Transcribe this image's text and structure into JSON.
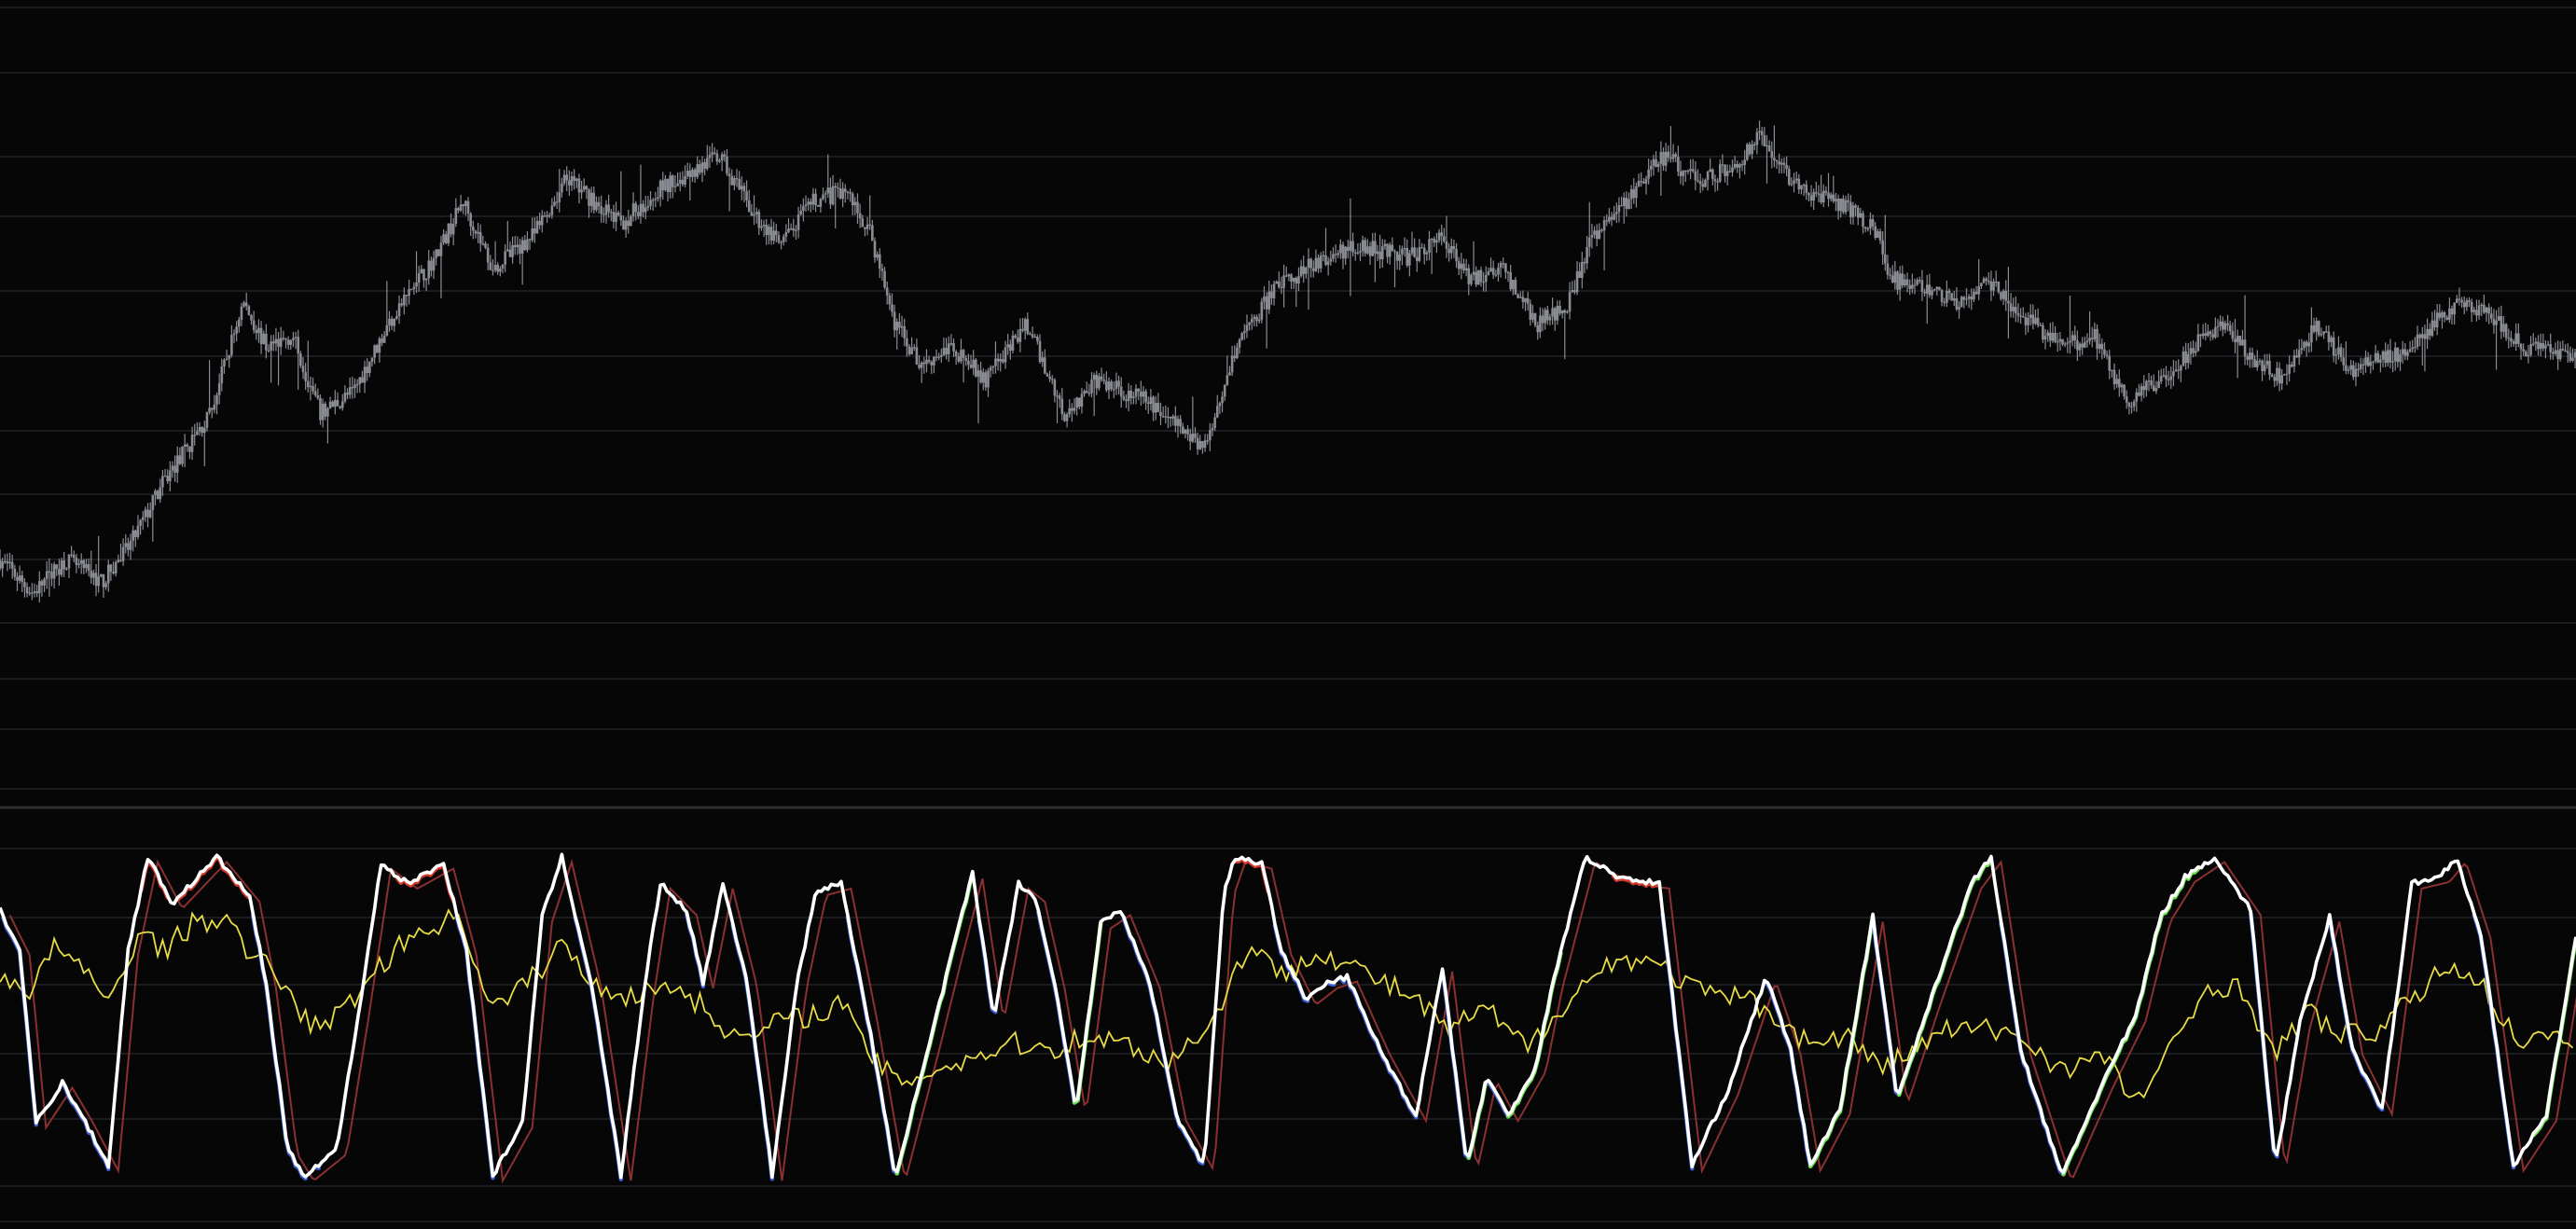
{
  "colors": {
    "background": "#060607",
    "grid": "#1b1c1f",
    "separator": "#2c2d31",
    "candle": "#8a8c93",
    "main_line": "#ffffff",
    "rising": "#6be04f",
    "falling": "#3f5fd0",
    "overbought": "#d33a2c",
    "momentum": "#e8dc46",
    "signal": "#8a3030"
  },
  "chart_data": [
    {
      "type": "candlestick",
      "title": "",
      "xlabel": "",
      "ylabel": "",
      "ylim": [
        0,
        100
      ],
      "grid": true,
      "x_range": [
        0,
        1568
      ],
      "trend": [
        [
          0,
          20
        ],
        [
          20,
          14
        ],
        [
          40,
          20
        ],
        [
          62,
          16
        ],
        [
          78,
          22
        ],
        [
          100,
          34
        ],
        [
          128,
          46
        ],
        [
          148,
          66
        ],
        [
          162,
          58
        ],
        [
          178,
          60
        ],
        [
          195,
          46
        ],
        [
          215,
          50
        ],
        [
          240,
          64
        ],
        [
          265,
          74
        ],
        [
          282,
          84
        ],
        [
          300,
          72
        ],
        [
          325,
          78
        ],
        [
          345,
          88
        ],
        [
          378,
          80
        ],
        [
          400,
          86
        ],
        [
          438,
          92
        ],
        [
          458,
          82
        ],
        [
          475,
          76
        ],
        [
          495,
          84
        ],
        [
          515,
          86
        ],
        [
          530,
          78
        ],
        [
          545,
          62
        ],
        [
          560,
          55
        ],
        [
          580,
          58
        ],
        [
          600,
          52
        ],
        [
          625,
          62
        ],
        [
          648,
          46
        ],
        [
          668,
          52
        ],
        [
          700,
          48
        ],
        [
          733,
          40
        ],
        [
          752,
          58
        ],
        [
          775,
          68
        ],
        [
          795,
          72
        ],
        [
          825,
          76
        ],
        [
          858,
          74
        ],
        [
          878,
          78
        ],
        [
          895,
          70
        ],
        [
          915,
          72
        ],
        [
          935,
          62
        ],
        [
          955,
          66
        ],
        [
          970,
          78
        ],
        [
          990,
          84
        ],
        [
          1012,
          92
        ],
        [
          1035,
          88
        ],
        [
          1055,
          90
        ],
        [
          1072,
          96
        ],
        [
          1095,
          86
        ],
        [
          1115,
          84
        ],
        [
          1140,
          80
        ],
        [
          1152,
          70
        ],
        [
          1175,
          68
        ],
        [
          1190,
          66
        ],
        [
          1210,
          70
        ],
        [
          1230,
          64
        ],
        [
          1255,
          58
        ],
        [
          1275,
          60
        ],
        [
          1295,
          48
        ],
        [
          1315,
          52
        ],
        [
          1335,
          58
        ],
        [
          1350,
          62
        ],
        [
          1372,
          56
        ],
        [
          1390,
          52
        ],
        [
          1410,
          62
        ],
        [
          1430,
          54
        ],
        [
          1455,
          56
        ],
        [
          1475,
          60
        ],
        [
          1495,
          66
        ],
        [
          1515,
          64
        ],
        [
          1535,
          58
        ],
        [
          1568,
          56
        ]
      ]
    },
    {
      "type": "line",
      "title": "",
      "xlabel": "",
      "ylabel": "",
      "ylim": [
        0,
        100
      ],
      "grid": true,
      "x_range": [
        0,
        1568
      ],
      "series": [
        {
          "role": "oscillator",
          "points": [
            [
              0,
              82
            ],
            [
              12,
              70
            ],
            [
              22,
              18
            ],
            [
              38,
              30
            ],
            [
              50,
              20
            ],
            [
              66,
              5
            ],
            [
              78,
              70
            ],
            [
              90,
              98
            ],
            [
              105,
              84
            ],
            [
              132,
              98
            ],
            [
              152,
              86
            ],
            [
              162,
              60
            ],
            [
              175,
              10
            ],
            [
              185,
              2
            ],
            [
              205,
              10
            ],
            [
              218,
              50
            ],
            [
              232,
              96
            ],
            [
              248,
              90
            ],
            [
              270,
              96
            ],
            [
              284,
              70
            ],
            [
              300,
              2
            ],
            [
              318,
              18
            ],
            [
              330,
              80
            ],
            [
              342,
              98
            ],
            [
              360,
              60
            ],
            [
              378,
              2
            ],
            [
              392,
              58
            ],
            [
              402,
              90
            ],
            [
              418,
              82
            ],
            [
              428,
              60
            ],
            [
              440,
              90
            ],
            [
              455,
              60
            ],
            [
              470,
              2
            ],
            [
              485,
              60
            ],
            [
              497,
              88
            ],
            [
              512,
              90
            ],
            [
              528,
              50
            ],
            [
              545,
              2
            ],
            [
              565,
              40
            ],
            [
              580,
              70
            ],
            [
              592,
              93
            ],
            [
              605,
              50
            ],
            [
              620,
              90
            ],
            [
              630,
              86
            ],
            [
              642,
              60
            ],
            [
              655,
              22
            ],
            [
              670,
              78
            ],
            [
              682,
              82
            ],
            [
              700,
              60
            ],
            [
              716,
              20
            ],
            [
              733,
              5
            ],
            [
              745,
              88
            ],
            [
              752,
              98
            ],
            [
              768,
              96
            ],
            [
              780,
              70
            ],
            [
              795,
              55
            ],
            [
              808,
              60
            ],
            [
              820,
              62
            ],
            [
              840,
              40
            ],
            [
              862,
              20
            ],
            [
              878,
              65
            ],
            [
              893,
              5
            ],
            [
              905,
              32
            ],
            [
              918,
              20
            ],
            [
              935,
              35
            ],
            [
              945,
              60
            ],
            [
              965,
              98
            ],
            [
              985,
              92
            ],
            [
              1010,
              90
            ],
            [
              1030,
              5
            ],
            [
              1052,
              28
            ],
            [
              1075,
              62
            ],
            [
              1090,
              40
            ],
            [
              1102,
              5
            ],
            [
              1120,
              22
            ],
            [
              1140,
              80
            ],
            [
              1155,
              25
            ],
            [
              1175,
              55
            ],
            [
              1200,
              90
            ],
            [
              1212,
              98
            ],
            [
              1230,
              40
            ],
            [
              1255,
              2
            ],
            [
              1280,
              30
            ],
            [
              1300,
              50
            ],
            [
              1315,
              80
            ],
            [
              1330,
              92
            ],
            [
              1348,
              98
            ],
            [
              1370,
              82
            ],
            [
              1385,
              5
            ],
            [
              1400,
              48
            ],
            [
              1418,
              80
            ],
            [
              1432,
              40
            ],
            [
              1450,
              22
            ],
            [
              1468,
              90
            ],
            [
              1485,
              92
            ],
            [
              1495,
              98
            ],
            [
              1510,
              75
            ],
            [
              1530,
              5
            ],
            [
              1550,
              20
            ],
            [
              1568,
              74
            ]
          ]
        },
        {
          "role": "momentum",
          "points": [
            [
              0,
              62
            ],
            [
              18,
              58
            ],
            [
              35,
              72
            ],
            [
              52,
              62
            ],
            [
              68,
              55
            ],
            [
              85,
              76
            ],
            [
              100,
              70
            ],
            [
              118,
              78
            ],
            [
              135,
              80
            ],
            [
              150,
              70
            ],
            [
              170,
              62
            ],
            [
              190,
              46
            ],
            [
              210,
              52
            ],
            [
              232,
              66
            ],
            [
              255,
              76
            ],
            [
              280,
              80
            ],
            [
              300,
              52
            ],
            [
              325,
              62
            ],
            [
              342,
              72
            ],
            [
              360,
              60
            ],
            [
              385,
              56
            ],
            [
              410,
              60
            ],
            [
              430,
              52
            ],
            [
              452,
              42
            ],
            [
              470,
              48
            ],
            [
              490,
              50
            ],
            [
              512,
              54
            ],
            [
              528,
              40
            ],
            [
              545,
              30
            ],
            [
              570,
              34
            ],
            [
              595,
              38
            ],
            [
              615,
              42
            ],
            [
              640,
              40
            ],
            [
              660,
              44
            ],
            [
              685,
              42
            ],
            [
              712,
              36
            ],
            [
              740,
              50
            ],
            [
              760,
              72
            ],
            [
              780,
              62
            ],
            [
              800,
              70
            ],
            [
              820,
              66
            ],
            [
              842,
              60
            ],
            [
              860,
              56
            ],
            [
              880,
              46
            ],
            [
              905,
              52
            ],
            [
              930,
              40
            ],
            [
              955,
              56
            ],
            [
              980,
              66
            ],
            [
              1000,
              68
            ],
            [
              1020,
              62
            ],
            [
              1040,
              56
            ],
            [
              1060,
              56
            ],
            [
              1082,
              50
            ],
            [
              1100,
              42
            ],
            [
              1125,
              44
            ],
            [
              1145,
              34
            ],
            [
              1165,
              40
            ],
            [
              1185,
              46
            ],
            [
              1210,
              46
            ],
            [
              1230,
              44
            ],
            [
              1255,
              34
            ],
            [
              1280,
              38
            ],
            [
              1300,
              24
            ],
            [
              1322,
              40
            ],
            [
              1345,
              60
            ],
            [
              1365,
              58
            ],
            [
              1385,
              38
            ],
            [
              1405,
              52
            ],
            [
              1425,
              44
            ],
            [
              1448,
              46
            ],
            [
              1470,
              56
            ],
            [
              1492,
              66
            ],
            [
              1510,
              60
            ],
            [
              1530,
              44
            ],
            [
              1568,
              42
            ]
          ]
        }
      ]
    }
  ]
}
